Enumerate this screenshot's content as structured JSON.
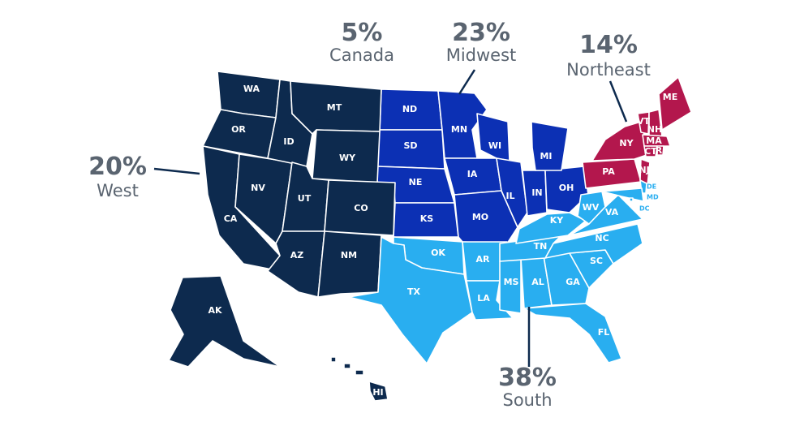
{
  "regions": [
    {
      "share": "5%",
      "name": "Canada",
      "color": "#0d2a4e",
      "states": []
    },
    {
      "share": "23%",
      "name": "Midwest",
      "color": "#0c30b4",
      "states": [
        "ND",
        "SD",
        "NE",
        "KS",
        "MN",
        "IA",
        "MO",
        "WI",
        "IL",
        "IN",
        "OH",
        "MI"
      ]
    },
    {
      "share": "14%",
      "name": "Northeast",
      "color": "#b3174d",
      "states": [
        "PA",
        "NY",
        "ME",
        "VT",
        "NH",
        "MA",
        "CT",
        "RI",
        "NJ"
      ]
    },
    {
      "share": "20%",
      "name": "West",
      "color": "#0d2a4e",
      "states": [
        "WA",
        "OR",
        "CA",
        "NV",
        "ID",
        "MT",
        "WY",
        "UT",
        "CO",
        "AZ",
        "NM",
        "AK",
        "HI"
      ]
    },
    {
      "share": "38%",
      "name": "South",
      "color": "#29aef0",
      "states": [
        "OK",
        "TX",
        "AR",
        "LA",
        "MS",
        "AL",
        "GA",
        "FL",
        "SC",
        "NC",
        "TN",
        "KY",
        "WV",
        "VA",
        "DE",
        "MD",
        "DC"
      ]
    }
  ]
}
